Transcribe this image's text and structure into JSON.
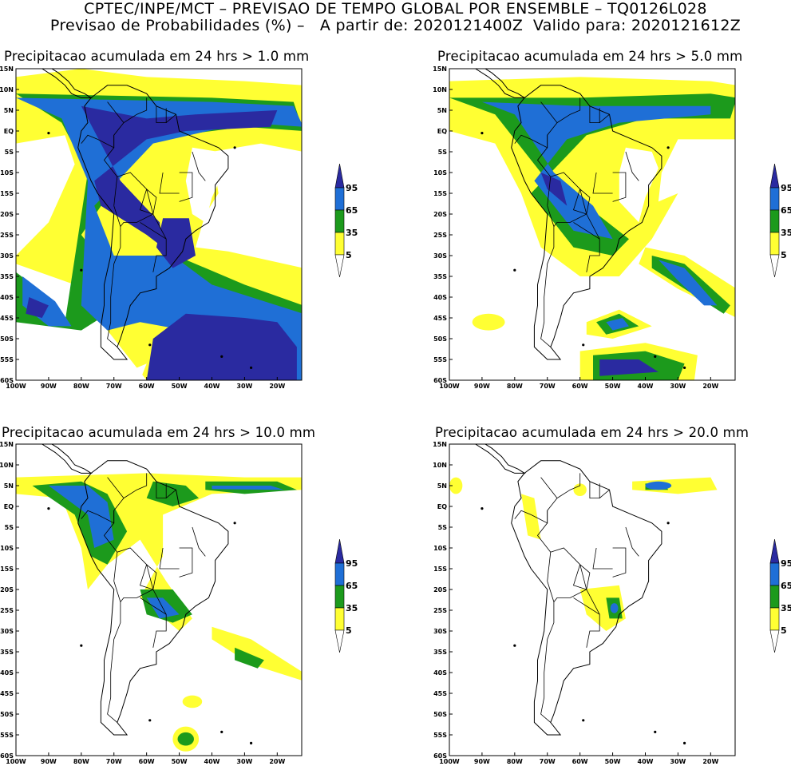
{
  "header": {
    "line1": "CPTEC/INPE/MCT – PREVISAO DE TEMPO GLOBAL POR ENSEMBLE – TQ0126L028",
    "line2": "Previsao de Probabilidades (%) –   A partir de: 2020121400Z  Valido para: 2020121612Z"
  },
  "lat_ticks": [
    "15N",
    "10N",
    "5N",
    "EQ",
    "5S",
    "10S",
    "15S",
    "20S",
    "25S",
    "30S",
    "35S",
    "40S",
    "45S",
    "50S",
    "55S",
    "60S"
  ],
  "lon_ticks": [
    "100W",
    "90W",
    "80W",
    "70W",
    "60W",
    "50W",
    "40W",
    "30W",
    "20W"
  ],
  "legend": {
    "labels": [
      "95",
      "65",
      "35",
      "5"
    ],
    "colors": {
      "c95": "#2a2aa0",
      "c65": "#1f6fd6",
      "c35": "#1c9a1c",
      "c5": "#ffff33"
    }
  },
  "panels": [
    {
      "title": "Precipitacao acumulada em 24 hrs > 1.0 mm"
    },
    {
      "title": "Precipitacao acumulada em 24 hrs > 5.0 mm"
    },
    {
      "title": "Precipitacao acumulada em 24 hrs > 10.0 mm"
    },
    {
      "title": "Precipitacao acumulada em 24 hrs > 20.0 mm"
    }
  ]
}
